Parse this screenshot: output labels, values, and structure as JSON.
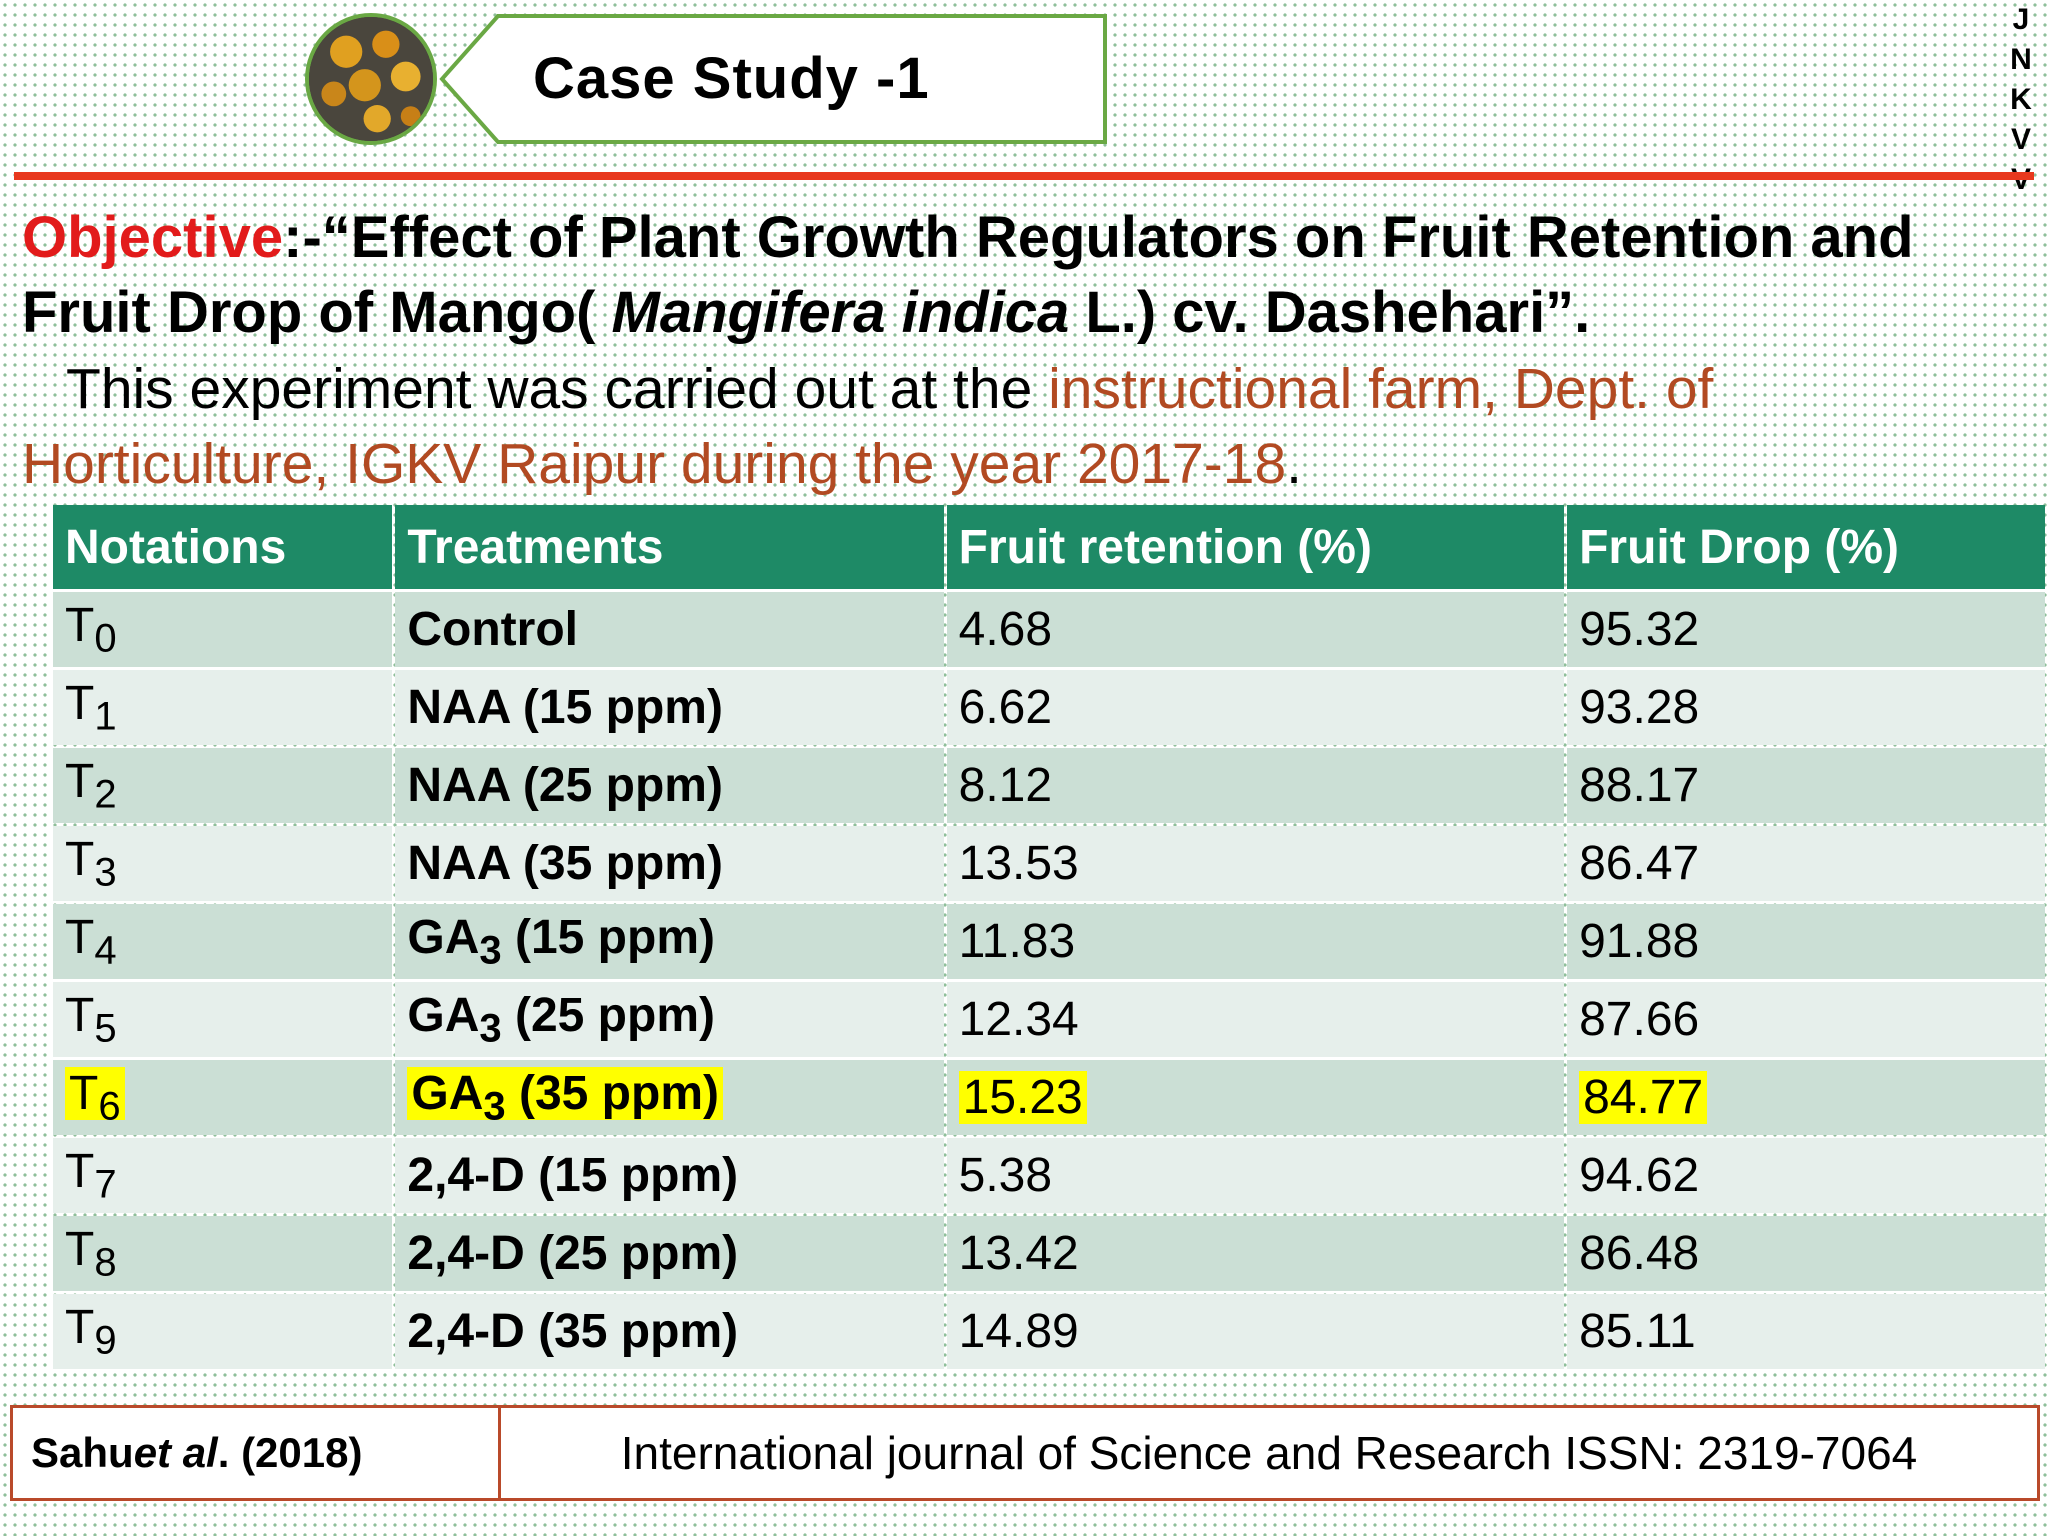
{
  "header": {
    "title": "Case Study -1",
    "side_letters": [
      "J",
      "N",
      "K",
      "V",
      "V"
    ]
  },
  "objective": {
    "label": "Objective",
    "text_prefix": ":-“Effect of Plant Growth Regulators on Fruit Retention and Fruit Drop of Mango( ",
    "species": "Mangifera indica",
    "text_suffix": " L.) cv. Dashehari”."
  },
  "experiment": {
    "prefix": "This experiment was carried out at the ",
    "location": "instructional farm, Dept. of Horticulture, IGKV Raipur during the year 2017-18",
    "suffix": "."
  },
  "table": {
    "headers": [
      "Notations",
      "Treatments",
      "Fruit retention (%)",
      "Fruit Drop (%)"
    ],
    "rows": [
      {
        "notation": "T",
        "sub": "0",
        "treatment": "Control",
        "treatment_sub": "",
        "treatment_rest": "",
        "retention": "4.68",
        "drop": "95.32"
      },
      {
        "notation": "T",
        "sub": "1",
        "treatment": "NAA (15 ppm)",
        "treatment_sub": "",
        "treatment_rest": "",
        "retention": "6.62",
        "drop": "93.28"
      },
      {
        "notation": "T",
        "sub": "2",
        "treatment": "NAA (25 ppm)",
        "treatment_sub": "",
        "treatment_rest": "",
        "retention": "8.12",
        "drop": "88.17"
      },
      {
        "notation": "T",
        "sub": "3",
        "treatment": "NAA (35 ppm)",
        "treatment_sub": "",
        "treatment_rest": "",
        "retention": "13.53",
        "drop": "86.47"
      },
      {
        "notation": "T",
        "sub": "4",
        "treatment": "GA",
        "treatment_sub": "3",
        "treatment_rest": " (15 ppm)",
        "retention": "11.83",
        "drop": "91.88"
      },
      {
        "notation": "T",
        "sub": "5",
        "treatment": "GA",
        "treatment_sub": "3",
        "treatment_rest": " (25 ppm)",
        "retention": "12.34",
        "drop": "87.66"
      },
      {
        "notation": "T",
        "sub": "6",
        "treatment": "GA",
        "treatment_sub": "3",
        "treatment_rest": " (35 ppm)",
        "retention": "15.23",
        "drop": "84.77",
        "highlight": true
      },
      {
        "notation": "T",
        "sub": "7",
        "treatment": "2,4-D (15 ppm)",
        "treatment_sub": "",
        "treatment_rest": "",
        "retention": "5.38",
        "drop": "94.62"
      },
      {
        "notation": "T",
        "sub": "8",
        "treatment": "2,4-D (25 ppm)",
        "treatment_sub": "",
        "treatment_rest": "",
        "retention": "13.42",
        "drop": "86.48"
      },
      {
        "notation": "T",
        "sub": "9",
        "treatment": "2,4-D (35 ppm)",
        "treatment_sub": "",
        "treatment_rest": "",
        "retention": "14.89",
        "drop": "85.11"
      }
    ]
  },
  "footer": {
    "author": "Sahu ",
    "etal": "et al",
    "year": ". (2018)",
    "journal": "International journal of Science and Research ISSN: 2319-7064"
  },
  "colors": {
    "header_green": "#1e8a66",
    "rule_red": "#e8381e",
    "objective_red": "#e21b1b",
    "location_brown": "#b24a22",
    "highlight": "#ffff00"
  },
  "icons": [
    "fruit-photo-icon"
  ]
}
